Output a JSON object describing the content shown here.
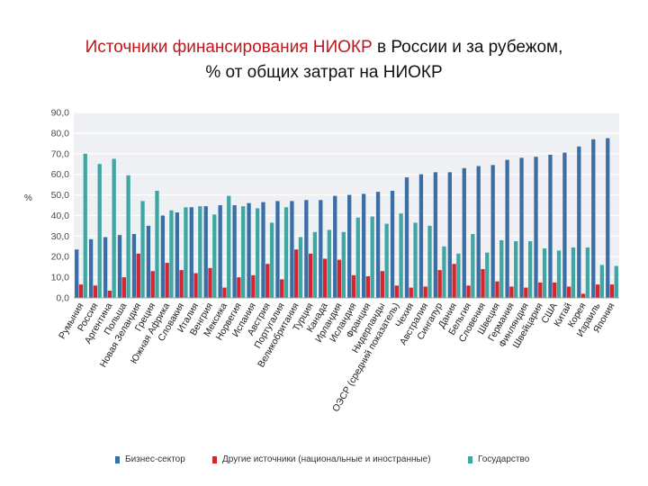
{
  "title": {
    "part1": "Источники финансирования НИОКР",
    "part2": " в России и за рубежом,",
    "line2": "% от общих затрат на НИОКР"
  },
  "colors": {
    "business": "#3a6ea5",
    "other": "#d4262e",
    "government": "#3fa6a2",
    "plot_bg": "#eef0f4",
    "grid": "#ffffff",
    "axis_text": "#4a4a4a"
  },
  "chart_data": {
    "type": "bar",
    "ylabel": "%",
    "ylim": [
      0,
      90
    ],
    "yticks": [
      "0,0",
      "10,0",
      "20,0",
      "30,0",
      "40,0",
      "50,0",
      "60,0",
      "70,0",
      "80,0",
      "90,0"
    ],
    "grid": true,
    "legend_position": "bottom",
    "categories": [
      "Румыния",
      "Россия",
      "Аргентина",
      "Польша",
      "Новая Зеландия",
      "Греция",
      "Южная Африка",
      "Словакия",
      "Италия",
      "Венгрия",
      "Мексика",
      "Норвегия",
      "Испания",
      "Австрия",
      "Португалия",
      "Великобритания",
      "Турция",
      "Канада",
      "Ирландия",
      "Исландия",
      "Франция",
      "Нидерланды",
      "ОЭСР (средний показатель)",
      "Чехия",
      "Австралия",
      "Сингапур",
      "Дания",
      "Бельгия",
      "Словения",
      "Швеция",
      "Германия",
      "Финляндия",
      "Швейцария",
      "США",
      "Китай",
      "Корея",
      "Израиль",
      "Япония"
    ],
    "series": [
      {
        "name": "Бизнес-сектор",
        "values": [
          23.5,
          28.5,
          29.5,
          30.5,
          31,
          35,
          40,
          41.5,
          44,
          44.5,
          45,
          45,
          46,
          46.5,
          47,
          47,
          47.5,
          47.5,
          49.5,
          50,
          50.5,
          51.5,
          52,
          58.5,
          60,
          61,
          61,
          63,
          64,
          64.5,
          67,
          68,
          68.5,
          69.5,
          70.5,
          73.5,
          77,
          77.5
        ]
      },
      {
        "name": "Другие источники (национальные и иностранные)",
        "values": [
          6.5,
          6,
          3.5,
          10,
          21.5,
          13,
          17,
          13.5,
          12,
          14.5,
          5,
          10,
          11,
          16.5,
          9,
          23.5,
          21.5,
          19,
          18.5,
          11,
          10.5,
          13,
          6,
          5,
          5.5,
          13.5,
          16.5,
          6,
          14,
          8,
          5.5,
          5,
          7.5,
          7.5,
          5.5,
          2,
          6.5,
          6.5
        ]
      },
      {
        "name": "Государство",
        "values": [
          70,
          65,
          67.5,
          59.5,
          47,
          52,
          42.5,
          44,
          44.5,
          40.5,
          49.5,
          44.5,
          43.5,
          36.5,
          44,
          29.5,
          32,
          33,
          32,
          39,
          39.5,
          36,
          41,
          36.5,
          35,
          25,
          21.5,
          31,
          22,
          28,
          27.5,
          27.5,
          24,
          23,
          24.5,
          24.5,
          16,
          15.5
        ]
      }
    ]
  },
  "legend": [
    {
      "label": "Бизнес-сектор",
      "color": "#3a6ea5"
    },
    {
      "label": "Другие источники (национальные и иностранные)",
      "color": "#d4262e"
    },
    {
      "label": "Государство",
      "color": "#3fa6a2"
    }
  ]
}
